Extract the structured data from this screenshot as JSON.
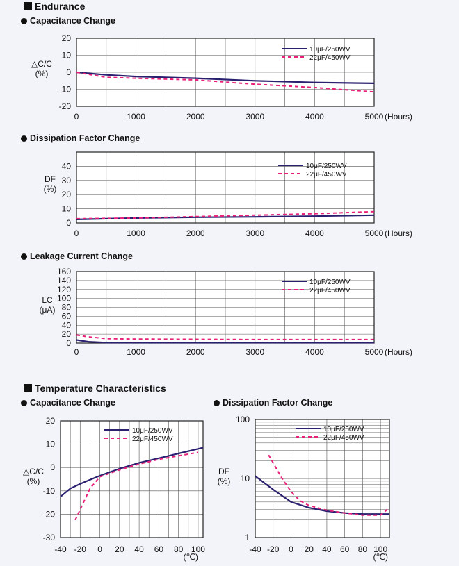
{
  "sections": {
    "endurance": "Endurance",
    "temperature": "Temperature Characteristics"
  },
  "chart_data": [
    {
      "id": "end_cap",
      "type": "line",
      "title": "Capacitance Change",
      "ylabel": "△C/C\n(%)",
      "xlabel": "",
      "x_unit": "(Hours)",
      "xlim": [
        0,
        5000
      ],
      "ylim": [
        -20,
        20
      ],
      "xticks": [
        0,
        1000,
        2000,
        3000,
        4000,
        5000
      ],
      "yticks": [
        20,
        10,
        0,
        -10,
        -20
      ],
      "series": [
        {
          "name": "10μF/250WV",
          "x": [
            0,
            500,
            1000,
            2000,
            3000,
            4000,
            5000
          ],
          "y": [
            0,
            -1.5,
            -2.5,
            -3.5,
            -5,
            -6,
            -6.5
          ]
        },
        {
          "name": "22μF/450WV",
          "x": [
            0,
            500,
            1000,
            2000,
            3000,
            4000,
            5000
          ],
          "y": [
            0,
            -3,
            -3.5,
            -4.5,
            -7,
            -9,
            -11.5
          ]
        }
      ]
    },
    {
      "id": "end_df",
      "type": "line",
      "title": "Dissipation Factor Change",
      "ylabel": "DF\n(%)",
      "xlabel": "",
      "x_unit": "(Hours)",
      "xlim": [
        0,
        5000
      ],
      "ylim": [
        0,
        50
      ],
      "xticks": [
        0,
        1000,
        2000,
        3000,
        4000,
        5000
      ],
      "yticks": [
        40,
        30,
        20,
        10,
        0
      ],
      "series": [
        {
          "name": "10μF/250WV",
          "x": [
            0,
            1000,
            2000,
            3000,
            4000,
            5000
          ],
          "y": [
            2.5,
            3.5,
            4,
            4.3,
            4.8,
            5.5
          ]
        },
        {
          "name": "22μF/450WV",
          "x": [
            0,
            1000,
            2000,
            3000,
            4000,
            5000
          ],
          "y": [
            3,
            3.5,
            4.5,
            5.5,
            6.5,
            8
          ]
        }
      ]
    },
    {
      "id": "end_lc",
      "type": "line",
      "title": "Leakage Current Change",
      "ylabel": "LC\n(μA)",
      "xlabel": "",
      "x_unit": "(Hours)",
      "xlim": [
        0,
        5000
      ],
      "ylim": [
        0,
        160
      ],
      "xticks": [
        0,
        1000,
        2000,
        3000,
        4000,
        5000
      ],
      "yticks": [
        160,
        140,
        120,
        100,
        80,
        60,
        40,
        20,
        0
      ],
      "series": [
        {
          "name": "10μF/250WV",
          "x": [
            0,
            200,
            500,
            1000,
            3000,
            5000
          ],
          "y": [
            7,
            3,
            1,
            1,
            1,
            1
          ]
        },
        {
          "name": "22μF/450WV",
          "x": [
            0,
            200,
            500,
            1000,
            3000,
            5000
          ],
          "y": [
            18,
            14,
            10,
            9,
            8,
            8
          ]
        }
      ]
    },
    {
      "id": "temp_cap",
      "type": "line",
      "title": "Capacitance Change",
      "ylabel": "△C/C\n(%)",
      "xlabel": "",
      "x_unit": "(℃)",
      "xlim": [
        -40,
        105
      ],
      "ylim": [
        -30,
        20
      ],
      "xticks": [
        -40,
        -20,
        0,
        20,
        40,
        60,
        80,
        100
      ],
      "yticks": [
        20,
        10,
        0,
        -10,
        -20,
        -30
      ],
      "series": [
        {
          "name": "10μF/250WV",
          "x": [
            -40,
            -30,
            -20,
            0,
            20,
            40,
            60,
            80,
            105
          ],
          "y": [
            -12.5,
            -9,
            -7,
            -3.5,
            -0.5,
            2,
            4,
            6,
            8.5
          ]
        },
        {
          "name": "22μF/450WV",
          "x": [
            -25,
            -20,
            -10,
            0,
            20,
            40,
            60,
            80,
            100
          ],
          "y": [
            -22.5,
            -18,
            -9,
            -4,
            -1,
            1.5,
            3.5,
            5,
            6.5
          ]
        }
      ]
    },
    {
      "id": "temp_df",
      "type": "line",
      "title": "Dissipation Factor Change",
      "ylabel": "DF\n(%)",
      "xlabel": "",
      "x_unit": "(℃)",
      "yscale": "log",
      "xlim": [
        -40,
        110
      ],
      "ylim": [
        1,
        100
      ],
      "xticks": [
        -40,
        -20,
        0,
        20,
        40,
        60,
        80,
        100
      ],
      "yticks": [
        100,
        10,
        1
      ],
      "series": [
        {
          "name": "10μF/250WV",
          "x": [
            -40,
            -20,
            0,
            20,
            40,
            60,
            80,
            100,
            110
          ],
          "y": [
            11,
            6.5,
            4,
            3.2,
            2.8,
            2.6,
            2.5,
            2.5,
            2.5
          ]
        },
        {
          "name": "22μF/450WV",
          "x": [
            -25,
            -10,
            0,
            10,
            20,
            40,
            60,
            80,
            100,
            110
          ],
          "y": [
            25,
            10,
            6,
            4.2,
            3.5,
            2.9,
            2.6,
            2.4,
            2.4,
            3.2
          ]
        }
      ]
    }
  ],
  "colors": {
    "series1": "#2a2070",
    "series2": "#e8207a"
  }
}
